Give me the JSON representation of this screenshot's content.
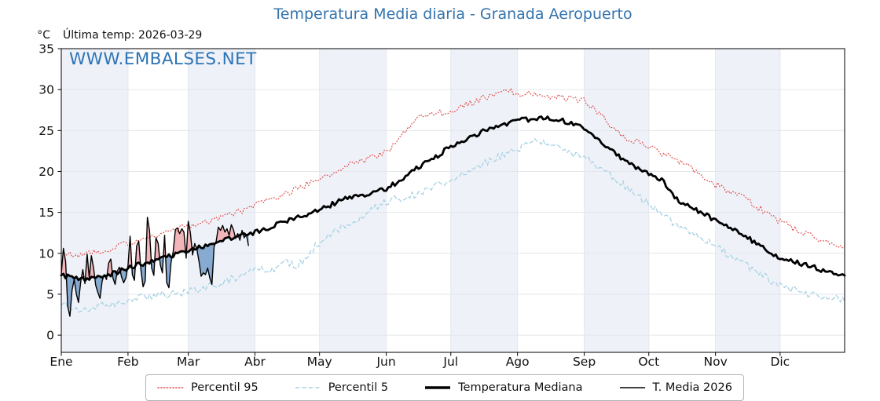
{
  "title": "Temperatura Media diaria - Granada Aeropuerto",
  "header": {
    "unit_label": "°C",
    "last_temp": "Última temp: 2026-03-29"
  },
  "watermark": "WWW.EMBALSES.NET",
  "colors": {
    "title_blue": "#3474ad",
    "watermark_blue": "#2e74b5",
    "band_shade": "#eef2f8",
    "gridline": "#e3e6eb",
    "axis": "#000000",
    "p95_red": "#e04e4e",
    "p5_blue": "#a8d2e4",
    "median_black": "#000000",
    "fill_above": "#f2b6ba",
    "fill_below": "#87abd0"
  },
  "chart_data": {
    "type": "line",
    "title": "Temperatura Media diaria - Granada Aeropuerto",
    "subtitle": "Última temp: 2026-03-29",
    "xlabel": "",
    "ylabel": "°C",
    "ylim": [
      -2.1,
      35
    ],
    "yticks": [
      0,
      5,
      10,
      15,
      20,
      25,
      30,
      35
    ],
    "grid": true,
    "days_in_year": 365,
    "months": [
      {
        "label": "Ene",
        "start": 1
      },
      {
        "label": "Feb",
        "start": 32
      },
      {
        "label": "Mar",
        "start": 60
      },
      {
        "label": "Abr",
        "start": 91
      },
      {
        "label": "May",
        "start": 121
      },
      {
        "label": "Jun",
        "start": 152
      },
      {
        "label": "Jul",
        "start": 182
      },
      {
        "label": "Ago",
        "start": 213
      },
      {
        "label": "Sep",
        "start": 244
      },
      {
        "label": "Oct",
        "start": 274
      },
      {
        "label": "Nov",
        "start": 305
      },
      {
        "label": "Dic",
        "start": 335
      }
    ],
    "shaded_month_indices": [
      0,
      2,
      4,
      6,
      8,
      10
    ],
    "jitter": {
      "seed": 1337,
      "note": "small daily noise texture added to climatology curves"
    },
    "series": [
      {
        "name": "Percentil 95",
        "style": "dotted",
        "color": "#e04e4e",
        "width": 1.2,
        "jitter_amp": 0.42,
        "anchors": [
          [
            1,
            10.2
          ],
          [
            10,
            9.7
          ],
          [
            20,
            10.4
          ],
          [
            32,
            11.2
          ],
          [
            46,
            12.3
          ],
          [
            60,
            13.3
          ],
          [
            74,
            14.2
          ],
          [
            88,
            15.5
          ],
          [
            91,
            16.0
          ],
          [
            105,
            17.3
          ],
          [
            121,
            19.0
          ],
          [
            135,
            20.8
          ],
          [
            152,
            22.3
          ],
          [
            166,
            26.5
          ],
          [
            182,
            27.4
          ],
          [
            196,
            28.8
          ],
          [
            209,
            30.0
          ],
          [
            213,
            29.6
          ],
          [
            227,
            29.2
          ],
          [
            244,
            28.6
          ],
          [
            253,
            26.5
          ],
          [
            262,
            24.2
          ],
          [
            274,
            23.0
          ],
          [
            288,
            21.3
          ],
          [
            305,
            18.4
          ],
          [
            319,
            16.6
          ],
          [
            335,
            13.8
          ],
          [
            349,
            12.2
          ],
          [
            358,
            11.3
          ],
          [
            365,
            10.7
          ]
        ]
      },
      {
        "name": "Percentil 5",
        "style": "dashed",
        "color": "#a8d2e4",
        "width": 1.3,
        "jitter_amp": 0.5,
        "anchors": [
          [
            1,
            3.8
          ],
          [
            10,
            3.0
          ],
          [
            15,
            3.3
          ],
          [
            32,
            4.3
          ],
          [
            46,
            4.9
          ],
          [
            60,
            5.3
          ],
          [
            74,
            6.3
          ],
          [
            91,
            7.8
          ],
          [
            100,
            8.2
          ],
          [
            105,
            9.3
          ],
          [
            110,
            8.2
          ],
          [
            121,
            11.4
          ],
          [
            135,
            13.6
          ],
          [
            152,
            16.3
          ],
          [
            166,
            17.3
          ],
          [
            182,
            18.9
          ],
          [
            196,
            20.8
          ],
          [
            213,
            22.8
          ],
          [
            222,
            23.7
          ],
          [
            227,
            23.2
          ],
          [
            244,
            21.8
          ],
          [
            258,
            19.3
          ],
          [
            274,
            16.0
          ],
          [
            288,
            13.1
          ],
          [
            305,
            10.9
          ],
          [
            319,
            8.6
          ],
          [
            335,
            6.1
          ],
          [
            349,
            5.0
          ],
          [
            365,
            4.3
          ]
        ]
      },
      {
        "name": "Temperatura Mediana",
        "style": "solid",
        "color": "#000000",
        "width": 2.8,
        "jitter_amp": 0.3,
        "anchors": [
          [
            1,
            7.3
          ],
          [
            10,
            6.8
          ],
          [
            15,
            6.9
          ],
          [
            25,
            7.5
          ],
          [
            32,
            8.3
          ],
          [
            46,
            9.2
          ],
          [
            60,
            10.4
          ],
          [
            74,
            11.4
          ],
          [
            88,
            12.3
          ],
          [
            91,
            12.6
          ],
          [
            105,
            13.8
          ],
          [
            121,
            15.3
          ],
          [
            135,
            16.9
          ],
          [
            142,
            17.2
          ],
          [
            152,
            17.8
          ],
          [
            166,
            20.3
          ],
          [
            182,
            23.0
          ],
          [
            196,
            24.8
          ],
          [
            213,
            26.2
          ],
          [
            222,
            26.5
          ],
          [
            232,
            26.4
          ],
          [
            244,
            25.4
          ],
          [
            258,
            22.3
          ],
          [
            268,
            20.5
          ],
          [
            274,
            19.8
          ],
          [
            280,
            19.0
          ],
          [
            288,
            16.3
          ],
          [
            292,
            15.9
          ],
          [
            305,
            14.0
          ],
          [
            319,
            12.1
          ],
          [
            335,
            9.3
          ],
          [
            349,
            8.5
          ],
          [
            358,
            7.6
          ],
          [
            365,
            7.4
          ]
        ]
      },
      {
        "name": "T. Media 2026",
        "style": "solid",
        "color": "#000000",
        "width": 1.4,
        "start_day": 1,
        "fill_vs": "Temperatura Mediana",
        "fill_above_color": "#f2b6ba",
        "fill_below_color": "#87abd0",
        "daily_values": [
          7.5,
          10.6,
          9.0,
          3.5,
          2.3,
          5.5,
          6.8,
          5.0,
          4.0,
          6.5,
          8.0,
          6.3,
          9.9,
          7.0,
          9.7,
          8.2,
          6.1,
          5.2,
          4.5,
          6.6,
          7.4,
          6.8,
          8.8,
          9.3,
          7.0,
          6.2,
          7.8,
          8.3,
          7.1,
          6.4,
          7.0,
          8.5,
          12.1,
          7.4,
          6.7,
          10.9,
          11.5,
          8.0,
          5.9,
          6.6,
          14.4,
          12.8,
          8.2,
          7.3,
          11.9,
          11.2,
          8.6,
          7.6,
          12.2,
          6.4,
          5.8,
          8.9,
          10.2,
          12.9,
          13.1,
          12.4,
          13.0,
          12.6,
          9.4,
          13.9,
          12.5,
          9.8,
          11.2,
          10.5,
          9.0,
          7.2,
          7.6,
          7.4,
          8.2,
          7.0,
          6.2,
          10.8,
          11.5,
          13.2,
          12.8,
          13.4,
          12.6,
          13.0,
          12.2,
          13.5,
          12.9,
          11.8,
          12.4,
          11.6,
          12.8,
          11.9,
          12.3,
          10.9
        ]
      }
    ],
    "legend": {
      "position": "bottom",
      "entries": [
        "Percentil 95",
        "Percentil 5",
        "Temperatura Mediana",
        "T. Media 2026"
      ]
    }
  }
}
